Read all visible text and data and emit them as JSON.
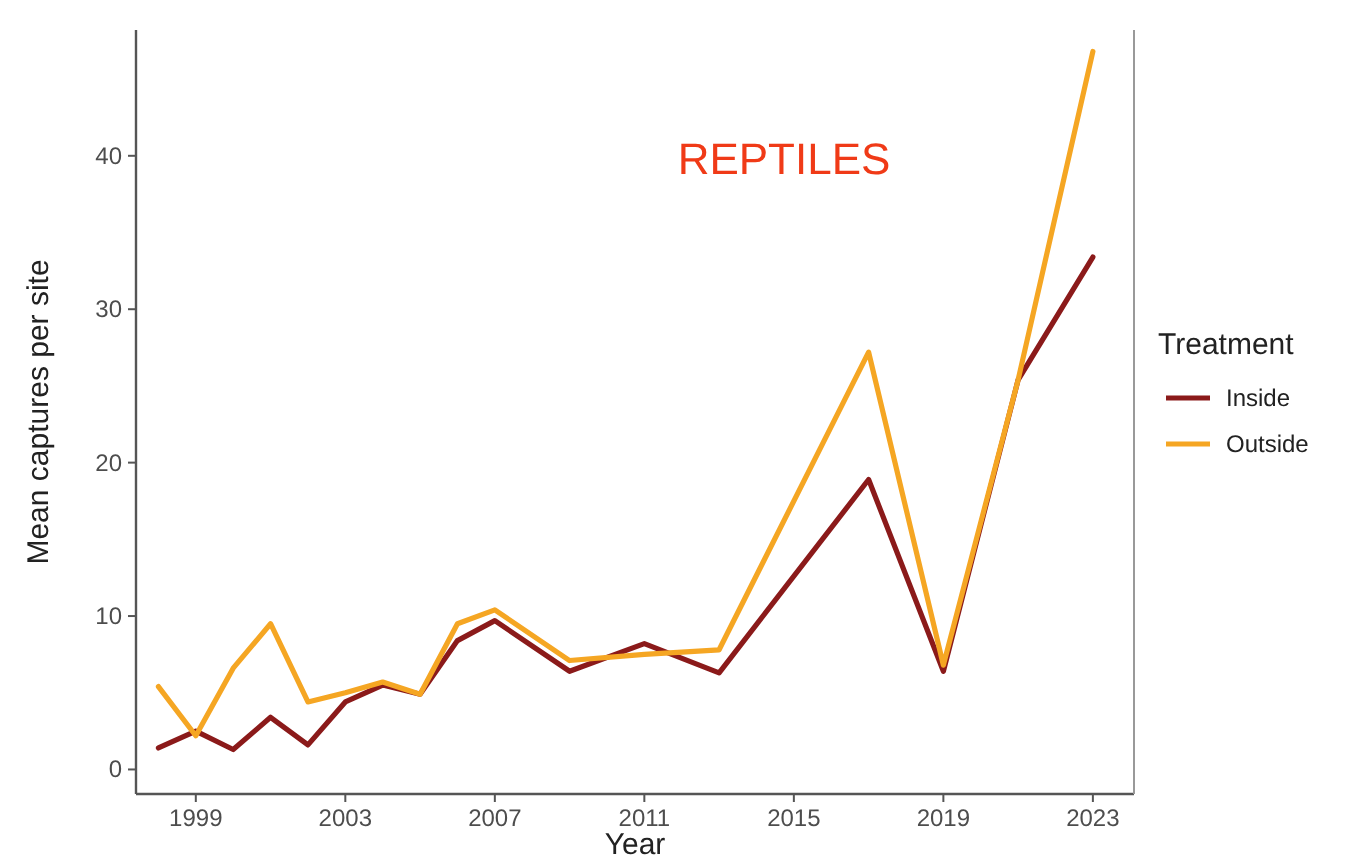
{
  "chart_data": {
    "type": "line",
    "xlabel": "Year",
    "ylabel": "Mean captures per site",
    "legend_title": "Treatment",
    "annotations": [
      "REPTILES"
    ],
    "x": [
      1998,
      1999,
      2000,
      2001,
      2002,
      2003,
      2004,
      2005,
      2006,
      2007,
      2009,
      2011,
      2013,
      2017,
      2019,
      2021,
      2023
    ],
    "series": [
      {
        "name": "Inside",
        "color": "#8b1a1a",
        "values": [
          1.4,
          2.5,
          1.3,
          3.4,
          1.6,
          4.4,
          5.5,
          4.9,
          8.4,
          9.7,
          6.4,
          8.2,
          6.3,
          18.9,
          6.4,
          25.4,
          33.4
        ]
      },
      {
        "name": "Outside",
        "color": "#f5a623",
        "values": [
          5.4,
          2.2,
          6.6,
          9.5,
          4.4,
          5.0,
          5.7,
          4.9,
          9.5,
          10.4,
          7.1,
          7.5,
          7.8,
          27.2,
          6.8,
          25.4,
          46.8
        ]
      }
    ],
    "xlim": [
      1997.4,
      2024.1
    ],
    "xticks": [
      1999,
      2003,
      2007,
      2011,
      2015,
      2019,
      2023
    ],
    "ylim": [
      -1.6,
      48.2
    ],
    "yticks": [
      0,
      10,
      20,
      30,
      40
    ],
    "grid": false,
    "legend": "right",
    "marker": "none",
    "line_style": "solid"
  }
}
